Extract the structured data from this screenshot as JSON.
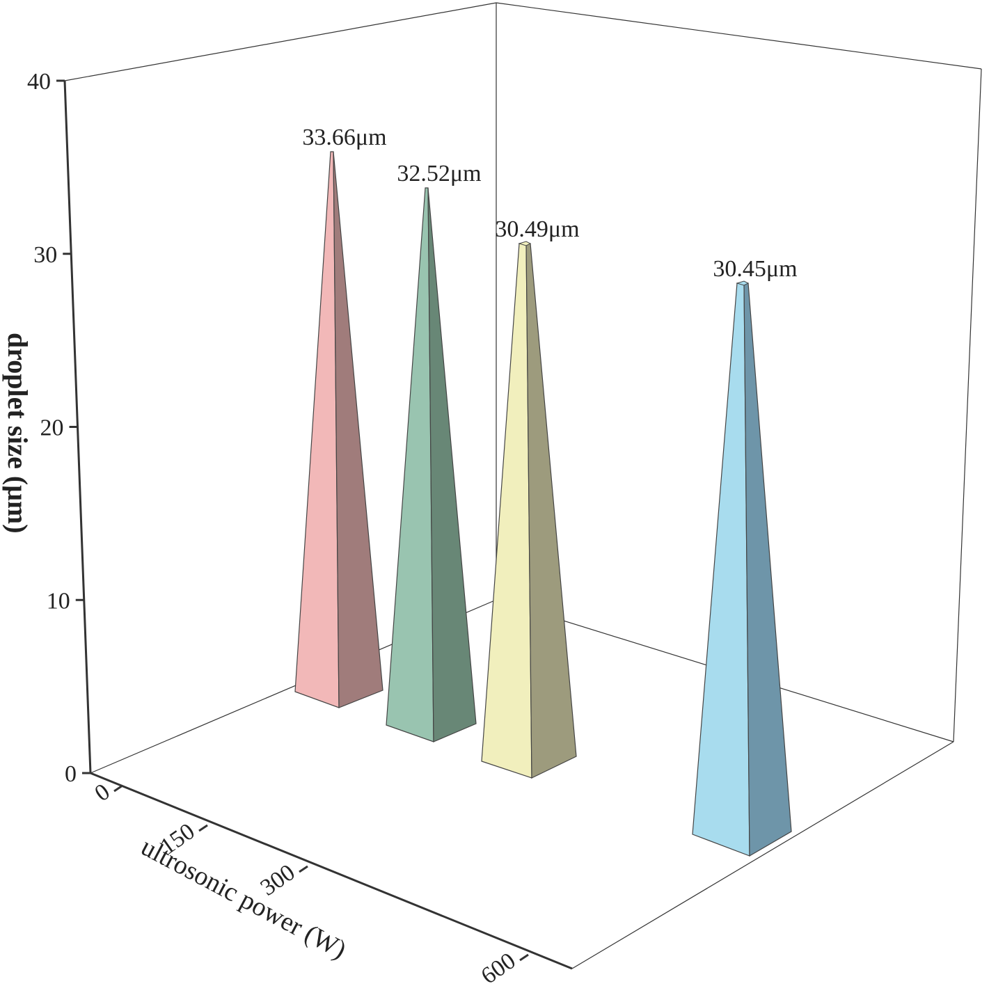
{
  "chart_data": {
    "type": "bar",
    "style": "3d-pyramid",
    "title": "",
    "xlabel": "ultrosonic power (W)",
    "ylabel": "droplet size (μm)",
    "x_ticks": [
      "0",
      "150",
      "300",
      "600"
    ],
    "y_ticks": [
      "0",
      "10",
      "20",
      "30",
      "40"
    ],
    "ylim": [
      0,
      40
    ],
    "categories": [
      "0",
      "150",
      "300",
      "600"
    ],
    "values": [
      33.66,
      32.52,
      30.49,
      30.45
    ],
    "data_labels": [
      "33.66μm",
      "32.52μm",
      "30.49μm",
      "30.45μm"
    ],
    "colors": [
      "#f2b8b8",
      "#99c4b0",
      "#f1efbd",
      "#a8dcee"
    ],
    "shade_colors": [
      "#a07c7b",
      "#688776",
      "#9d9b7d",
      "#6e95a9"
    ],
    "grid": false,
    "legend": "none"
  }
}
